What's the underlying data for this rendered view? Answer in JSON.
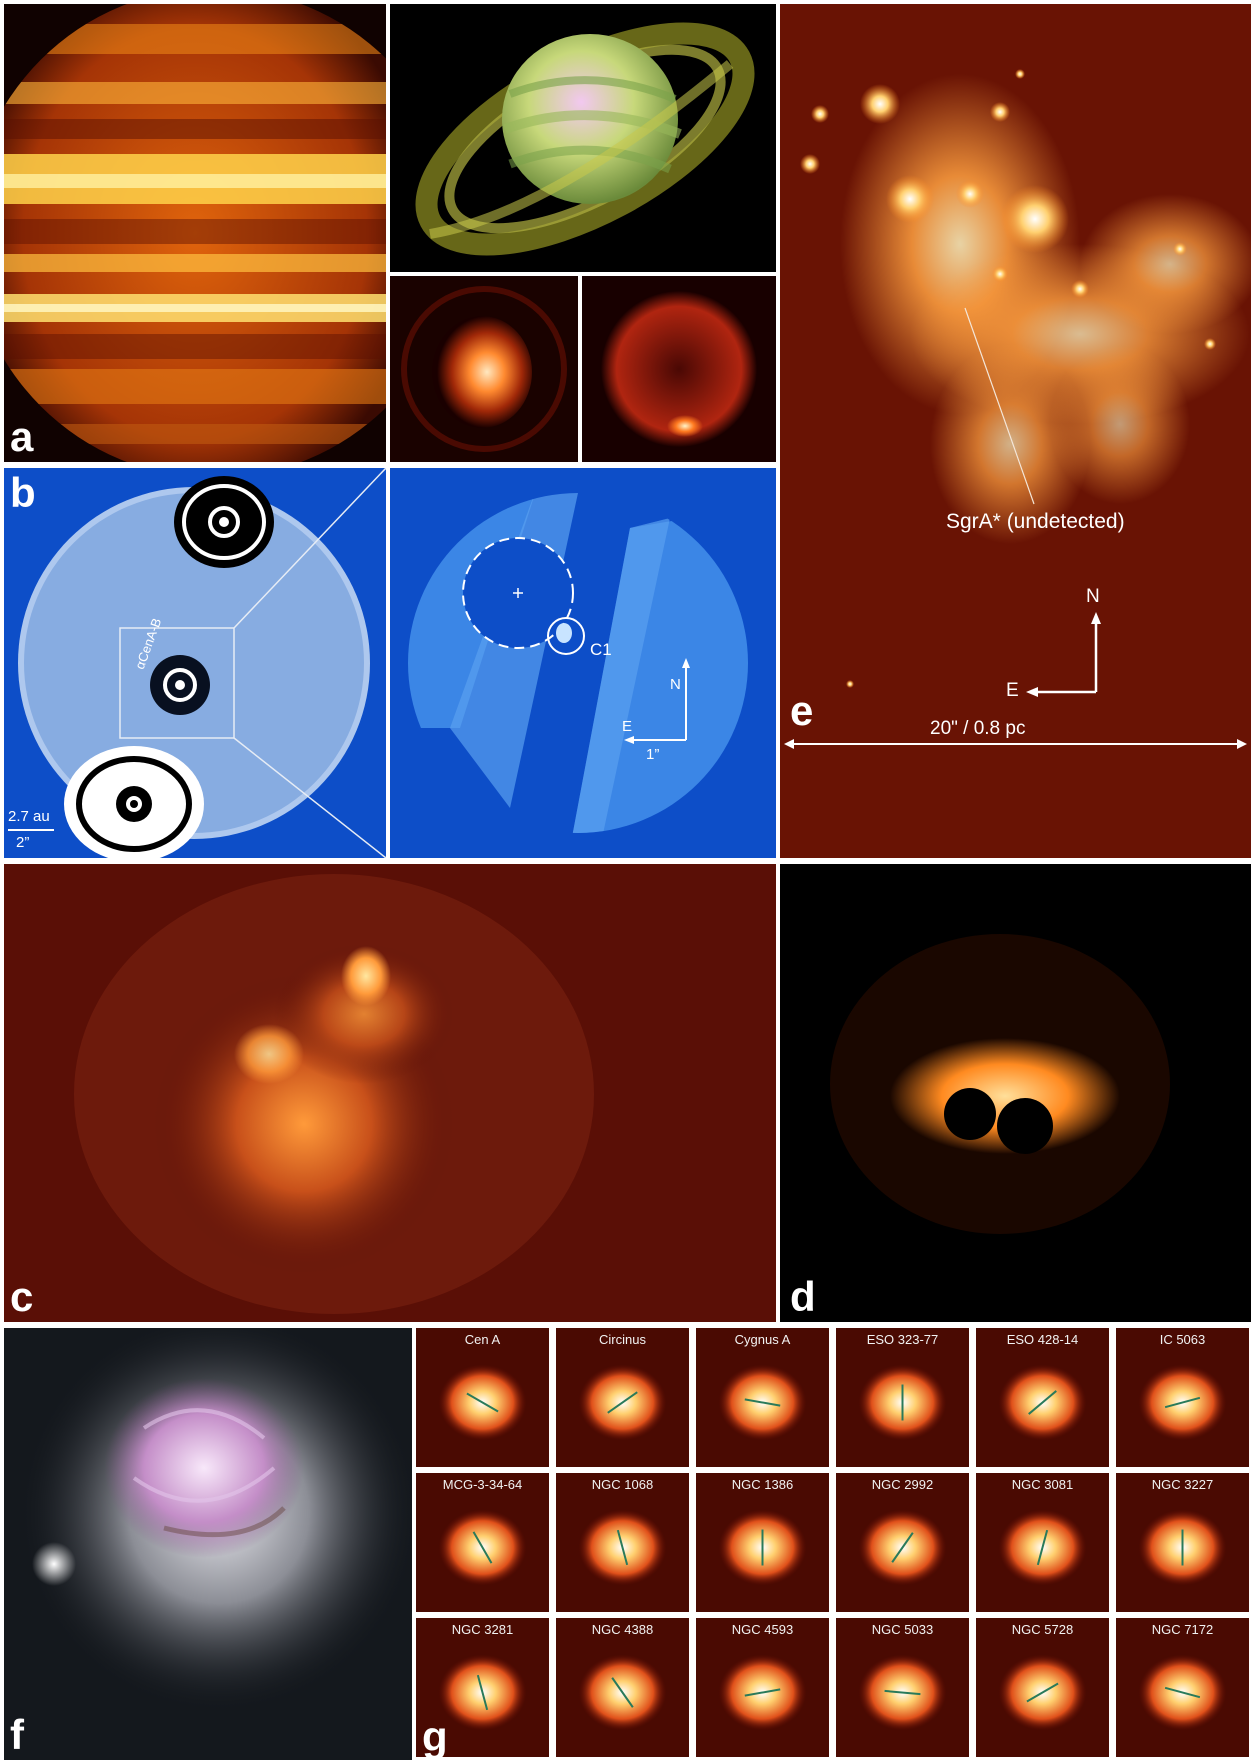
{
  "panels": {
    "a": {
      "label": "a"
    },
    "b": {
      "label": "b",
      "left": {
        "target_label": "αCenA-B",
        "scale_top": "2.7 au",
        "scale_bottom": "2”"
      },
      "right": {
        "candidate_label": "C1",
        "north": "N",
        "east": "E",
        "scale": "1”"
      }
    },
    "c": {
      "label": "c"
    },
    "d": {
      "label": "d"
    },
    "e": {
      "label": "e",
      "annotation": "SgrA* (undetected)",
      "north": "N",
      "east": "E",
      "scale": "20\" / 0.8 pc"
    },
    "f": {
      "label": "f"
    },
    "g": {
      "label": "g",
      "galaxies": [
        {
          "name": "Cen A",
          "pa": 30
        },
        {
          "name": "Circinus",
          "pa": -35
        },
        {
          "name": "Cygnus A",
          "pa": 10
        },
        {
          "name": "ESO 323-77",
          "pa": 90
        },
        {
          "name": "ESO 428-14",
          "pa": -40
        },
        {
          "name": "IC 5063",
          "pa": -15
        },
        {
          "name": "MCG-3-34-64",
          "pa": 60
        },
        {
          "name": "NGC 1068",
          "pa": 75
        },
        {
          "name": "NGC 1386",
          "pa": 90
        },
        {
          "name": "NGC 2992",
          "pa": -55
        },
        {
          "name": "NGC 3081",
          "pa": -75
        },
        {
          "name": "NGC 3227",
          "pa": 90
        },
        {
          "name": "NGC 3281",
          "pa": 75
        },
        {
          "name": "NGC 4388",
          "pa": 55
        },
        {
          "name": "NGC 4593",
          "pa": -10
        },
        {
          "name": "NGC 5033",
          "pa": 5
        },
        {
          "name": "NGC 5728",
          "pa": -30
        },
        {
          "name": "NGC 7172",
          "pa": 15
        }
      ]
    }
  }
}
